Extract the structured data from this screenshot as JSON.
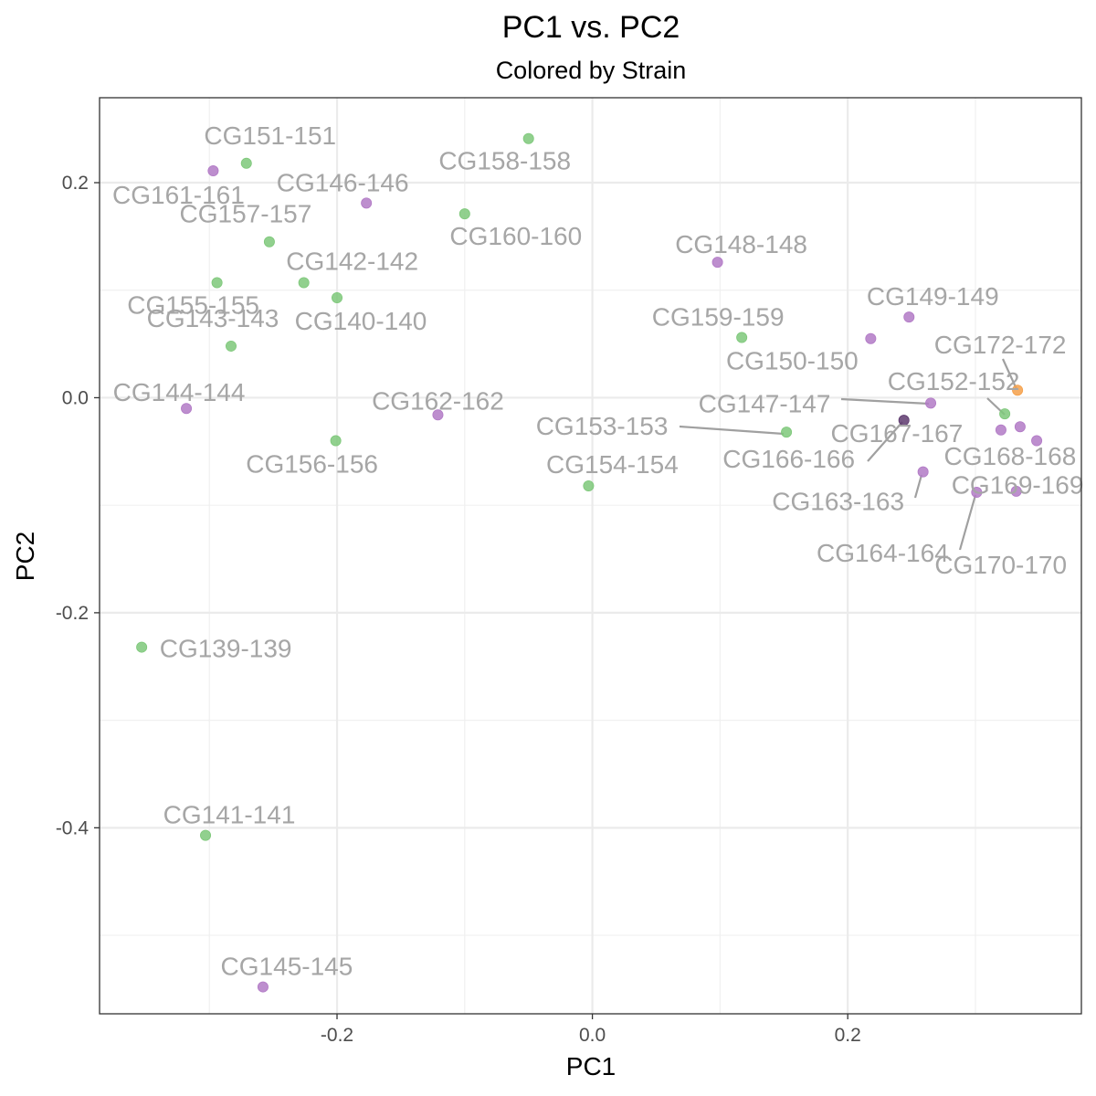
{
  "chart_data": {
    "type": "scatter",
    "title": "PC1 vs. PC2",
    "subtitle": "Colored by Strain",
    "xlabel": "PC1",
    "ylabel": "PC2",
    "xlim": [
      -0.386,
      0.383
    ],
    "ylim": [
      -0.573,
      0.279
    ],
    "x_ticks": [
      -0.2,
      0.0,
      0.2
    ],
    "x_tick_labels": [
      "-0.2",
      "0.0",
      "0.2"
    ],
    "y_ticks": [
      0.2,
      0.0,
      -0.2,
      -0.4
    ],
    "y_tick_labels": [
      "0.2",
      "0.0",
      "-0.2",
      "-0.4"
    ],
    "grid": true,
    "legend": "none",
    "colors": {
      "green": "#7ec87a",
      "purple": "#b27ac6",
      "orange": "#f5a04a",
      "dark_purple": "#5e3a6e"
    },
    "points": [
      {
        "label": "CG139-139",
        "x": -0.353,
        "y": -0.232,
        "color": "green"
      },
      {
        "label": "CG140-140",
        "x": -0.2,
        "y": 0.093,
        "color": "green"
      },
      {
        "label": "CG141-141",
        "x": -0.303,
        "y": -0.407,
        "color": "green"
      },
      {
        "label": "CG142-142",
        "x": -0.226,
        "y": 0.107,
        "color": "green"
      },
      {
        "label": "CG143-143",
        "x": -0.283,
        "y": 0.048,
        "color": "green"
      },
      {
        "label": "CG144-144",
        "x": -0.318,
        "y": -0.01,
        "color": "purple"
      },
      {
        "label": "CG145-145",
        "x": -0.258,
        "y": -0.548,
        "color": "purple"
      },
      {
        "label": "CG146-146",
        "x": -0.177,
        "y": 0.181,
        "color": "purple"
      },
      {
        "label": "CG147-147",
        "x": 0.265,
        "y": -0.005,
        "color": "purple"
      },
      {
        "label": "CG148-148",
        "x": 0.098,
        "y": 0.126,
        "color": "purple"
      },
      {
        "label": "CG149-149",
        "x": 0.248,
        "y": 0.075,
        "color": "purple"
      },
      {
        "label": "CG150-150",
        "x": 0.218,
        "y": 0.055,
        "color": "purple"
      },
      {
        "label": "CG151-151",
        "x": -0.271,
        "y": 0.218,
        "color": "green"
      },
      {
        "label": "CG152-152",
        "x": 0.323,
        "y": -0.015,
        "color": "green"
      },
      {
        "label": "CG153-153",
        "x": 0.152,
        "y": -0.032,
        "color": "green"
      },
      {
        "label": "CG154-154",
        "x": -0.003,
        "y": -0.082,
        "color": "green"
      },
      {
        "label": "CG155-155",
        "x": -0.294,
        "y": 0.107,
        "color": "green"
      },
      {
        "label": "CG156-156",
        "x": -0.201,
        "y": -0.04,
        "color": "green"
      },
      {
        "label": "CG157-157",
        "x": -0.253,
        "y": 0.145,
        "color": "green"
      },
      {
        "label": "CG158-158",
        "x": -0.05,
        "y": 0.241,
        "color": "green"
      },
      {
        "label": "CG159-159",
        "x": 0.117,
        "y": 0.056,
        "color": "green"
      },
      {
        "label": "CG160-160",
        "x": -0.1,
        "y": 0.171,
        "color": "green"
      },
      {
        "label": "CG161-161",
        "x": -0.297,
        "y": 0.211,
        "color": "purple"
      },
      {
        "label": "CG162-162",
        "x": -0.121,
        "y": -0.016,
        "color": "purple"
      },
      {
        "label": "CG163-163",
        "x": 0.259,
        "y": -0.069,
        "color": "purple"
      },
      {
        "label": "CG164-164",
        "x": 0.301,
        "y": -0.088,
        "color": "purple"
      },
      {
        "label": "CG166-166",
        "x": 0.244,
        "y": -0.021,
        "color": "dark_purple"
      },
      {
        "label": "CG167-167",
        "x": 0.32,
        "y": -0.03,
        "color": "purple"
      },
      {
        "label": "CG168-168",
        "x": 0.335,
        "y": -0.027,
        "color": "purple"
      },
      {
        "label": "CG169-169",
        "x": 0.348,
        "y": -0.04,
        "color": "purple"
      },
      {
        "label": "CG170-170",
        "x": 0.332,
        "y": -0.087,
        "color": "purple"
      },
      {
        "label": "CG172-172",
        "x": 0.333,
        "y": 0.007,
        "color": "orange"
      }
    ]
  }
}
